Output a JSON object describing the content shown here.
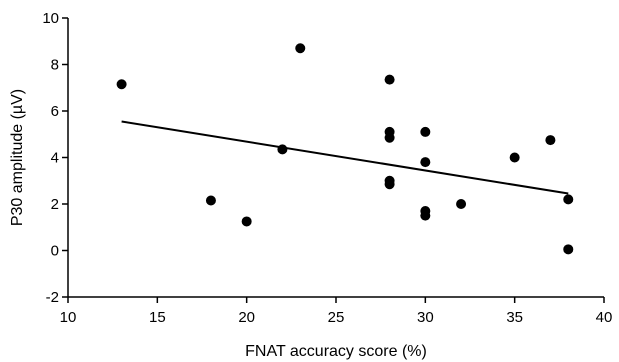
{
  "chart_data": {
    "type": "scatter",
    "title": "",
    "xlabel": "FNAT accuracy score (%)",
    "ylabel": "P30 amplitude (µV)",
    "xlim": [
      10,
      40
    ],
    "ylim": [
      -2,
      10
    ],
    "xticks": [
      10,
      15,
      20,
      25,
      30,
      35,
      40
    ],
    "yticks": [
      -2,
      0,
      2,
      4,
      6,
      8,
      10
    ],
    "grid": false,
    "legend": "none",
    "point_color": "#000000",
    "line_color": "#000000",
    "points": [
      {
        "x": 13,
        "y": 7.15
      },
      {
        "x": 18,
        "y": 2.15
      },
      {
        "x": 20,
        "y": 1.25
      },
      {
        "x": 22,
        "y": 4.35
      },
      {
        "x": 23,
        "y": 8.7
      },
      {
        "x": 28,
        "y": 7.35
      },
      {
        "x": 28,
        "y": 5.1
      },
      {
        "x": 28,
        "y": 4.85
      },
      {
        "x": 28,
        "y": 3.0
      },
      {
        "x": 28,
        "y": 2.85
      },
      {
        "x": 30,
        "y": 5.1
      },
      {
        "x": 30,
        "y": 3.8
      },
      {
        "x": 30,
        "y": 1.7
      },
      {
        "x": 30,
        "y": 1.5
      },
      {
        "x": 32,
        "y": 2.0
      },
      {
        "x": 35,
        "y": 4.0
      },
      {
        "x": 37,
        "y": 4.75
      },
      {
        "x": 38,
        "y": 2.2
      },
      {
        "x": 38,
        "y": 0.05
      }
    ],
    "fit_line": {
      "x": [
        13,
        38
      ],
      "y": [
        5.55,
        2.45
      ]
    }
  }
}
